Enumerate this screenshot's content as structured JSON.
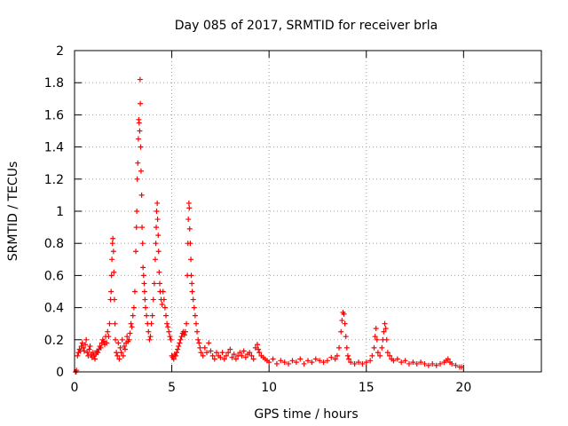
{
  "chart_data": {
    "type": "scatter",
    "title": "Day 085 of 2017, SRMTID for receiver brla",
    "xlabel": "GPS time / hours",
    "ylabel": "SRMTID / TECUs",
    "xlim": [
      0,
      24
    ],
    "ylim": [
      0,
      2
    ],
    "xticks": [
      0,
      5,
      10,
      15,
      20
    ],
    "yticks": [
      0,
      0.2,
      0.4,
      0.6,
      0.8,
      1,
      1.2,
      1.4,
      1.6,
      1.8,
      2
    ],
    "grid": true,
    "marker": "+",
    "series": [
      {
        "name": "SRMTID",
        "color": "#ff0000",
        "points": [
          [
            0.05,
            0.0
          ],
          [
            0.08,
            0.0
          ],
          [
            0.1,
            0.01
          ],
          [
            0.15,
            0.1
          ],
          [
            0.2,
            0.12
          ],
          [
            0.25,
            0.14
          ],
          [
            0.3,
            0.13
          ],
          [
            0.35,
            0.16
          ],
          [
            0.4,
            0.18
          ],
          [
            0.45,
            0.15
          ],
          [
            0.5,
            0.13
          ],
          [
            0.55,
            0.17
          ],
          [
            0.6,
            0.2
          ],
          [
            0.65,
            0.12
          ],
          [
            0.7,
            0.1
          ],
          [
            0.75,
            0.14
          ],
          [
            0.8,
            0.16
          ],
          [
            0.85,
            0.11
          ],
          [
            0.9,
            0.09
          ],
          [
            0.95,
            0.12
          ],
          [
            1.0,
            0.1
          ],
          [
            1.05,
            0.08
          ],
          [
            1.1,
            0.11
          ],
          [
            1.15,
            0.13
          ],
          [
            1.2,
            0.12
          ],
          [
            1.25,
            0.14
          ],
          [
            1.3,
            0.16
          ],
          [
            1.35,
            0.15
          ],
          [
            1.4,
            0.18
          ],
          [
            1.45,
            0.2
          ],
          [
            1.5,
            0.19
          ],
          [
            1.55,
            0.17
          ],
          [
            1.6,
            0.22
          ],
          [
            1.65,
            0.18
          ],
          [
            1.7,
            0.25
          ],
          [
            1.75,
            0.22
          ],
          [
            1.8,
            0.3
          ],
          [
            1.85,
            0.45
          ],
          [
            1.88,
            0.5
          ],
          [
            1.9,
            0.6
          ],
          [
            1.92,
            0.7
          ],
          [
            1.95,
            0.8
          ],
          [
            1.97,
            0.83
          ],
          [
            2.0,
            0.75
          ],
          [
            2.02,
            0.62
          ],
          [
            2.05,
            0.45
          ],
          [
            2.08,
            0.3
          ],
          [
            2.1,
            0.2
          ],
          [
            2.15,
            0.12
          ],
          [
            2.2,
            0.1
          ],
          [
            2.25,
            0.18
          ],
          [
            2.3,
            0.08
          ],
          [
            2.35,
            0.15
          ],
          [
            2.4,
            0.12
          ],
          [
            2.45,
            0.2
          ],
          [
            2.5,
            0.1
          ],
          [
            2.55,
            0.16
          ],
          [
            2.6,
            0.14
          ],
          [
            2.65,
            0.18
          ],
          [
            2.7,
            0.22
          ],
          [
            2.75,
            0.19
          ],
          [
            2.8,
            0.2
          ],
          [
            2.85,
            0.24
          ],
          [
            2.9,
            0.3
          ],
          [
            2.95,
            0.28
          ],
          [
            3.0,
            0.35
          ],
          [
            3.05,
            0.4
          ],
          [
            3.1,
            0.5
          ],
          [
            3.15,
            0.75
          ],
          [
            3.18,
            0.9
          ],
          [
            3.2,
            1.0
          ],
          [
            3.22,
            1.2
          ],
          [
            3.25,
            1.3
          ],
          [
            3.28,
            1.45
          ],
          [
            3.3,
            1.57
          ],
          [
            3.32,
            1.55
          ],
          [
            3.35,
            1.5
          ],
          [
            3.37,
            1.82
          ],
          [
            3.38,
            1.67
          ],
          [
            3.4,
            1.4
          ],
          [
            3.42,
            1.25
          ],
          [
            3.45,
            1.1
          ],
          [
            3.47,
            0.9
          ],
          [
            3.5,
            0.8
          ],
          [
            3.52,
            0.65
          ],
          [
            3.55,
            0.6
          ],
          [
            3.58,
            0.55
          ],
          [
            3.6,
            0.5
          ],
          [
            3.62,
            0.45
          ],
          [
            3.65,
            0.4
          ],
          [
            3.7,
            0.35
          ],
          [
            3.75,
            0.3
          ],
          [
            3.8,
            0.25
          ],
          [
            3.85,
            0.2
          ],
          [
            3.9,
            0.22
          ],
          [
            3.95,
            0.3
          ],
          [
            4.0,
            0.35
          ],
          [
            4.05,
            0.45
          ],
          [
            4.1,
            0.55
          ],
          [
            4.15,
            0.7
          ],
          [
            4.18,
            0.8
          ],
          [
            4.2,
            0.9
          ],
          [
            4.22,
            1.0
          ],
          [
            4.25,
            1.05
          ],
          [
            4.27,
            0.95
          ],
          [
            4.3,
            0.85
          ],
          [
            4.32,
            0.75
          ],
          [
            4.35,
            0.62
          ],
          [
            4.38,
            0.55
          ],
          [
            4.4,
            0.5
          ],
          [
            4.45,
            0.45
          ],
          [
            4.5,
            0.42
          ],
          [
            4.55,
            0.5
          ],
          [
            4.6,
            0.45
          ],
          [
            4.65,
            0.4
          ],
          [
            4.7,
            0.35
          ],
          [
            4.75,
            0.3
          ],
          [
            4.8,
            0.28
          ],
          [
            4.85,
            0.25
          ],
          [
            4.9,
            0.22
          ],
          [
            4.95,
            0.2
          ],
          [
            5.0,
            0.1
          ],
          [
            5.05,
            0.09
          ],
          [
            5.1,
            0.08
          ],
          [
            5.15,
            0.11
          ],
          [
            5.2,
            0.1
          ],
          [
            5.25,
            0.12
          ],
          [
            5.3,
            0.14
          ],
          [
            5.35,
            0.16
          ],
          [
            5.4,
            0.18
          ],
          [
            5.45,
            0.2
          ],
          [
            5.5,
            0.22
          ],
          [
            5.55,
            0.24
          ],
          [
            5.6,
            0.25
          ],
          [
            5.65,
            0.23
          ],
          [
            5.7,
            0.25
          ],
          [
            5.75,
            0.3
          ],
          [
            5.8,
            0.6
          ],
          [
            5.83,
            0.8
          ],
          [
            5.85,
            0.95
          ],
          [
            5.88,
            1.05
          ],
          [
            5.9,
            1.02
          ],
          [
            5.92,
            0.89
          ],
          [
            5.95,
            0.8
          ],
          [
            5.98,
            0.7
          ],
          [
            6.0,
            0.6
          ],
          [
            6.03,
            0.55
          ],
          [
            6.05,
            0.5
          ],
          [
            6.1,
            0.45
          ],
          [
            6.15,
            0.4
          ],
          [
            6.2,
            0.35
          ],
          [
            6.25,
            0.3
          ],
          [
            6.3,
            0.25
          ],
          [
            6.35,
            0.2
          ],
          [
            6.4,
            0.18
          ],
          [
            6.45,
            0.15
          ],
          [
            6.5,
            0.12
          ],
          [
            6.6,
            0.1
          ],
          [
            6.7,
            0.15
          ],
          [
            6.8,
            0.12
          ],
          [
            6.9,
            0.18
          ],
          [
            7.0,
            0.13
          ],
          [
            7.1,
            0.1
          ],
          [
            7.2,
            0.08
          ],
          [
            7.3,
            0.12
          ],
          [
            7.4,
            0.1
          ],
          [
            7.5,
            0.09
          ],
          [
            7.6,
            0.12
          ],
          [
            7.7,
            0.08
          ],
          [
            7.8,
            0.1
          ],
          [
            7.9,
            0.12
          ],
          [
            8.0,
            0.14
          ],
          [
            8.1,
            0.09
          ],
          [
            8.2,
            0.11
          ],
          [
            8.3,
            0.08
          ],
          [
            8.4,
            0.1
          ],
          [
            8.5,
            0.12
          ],
          [
            8.6,
            0.1
          ],
          [
            8.7,
            0.13
          ],
          [
            8.8,
            0.09
          ],
          [
            8.9,
            0.11
          ],
          [
            9.0,
            0.12
          ],
          [
            9.1,
            0.1
          ],
          [
            9.2,
            0.08
          ],
          [
            9.3,
            0.15
          ],
          [
            9.4,
            0.17
          ],
          [
            9.45,
            0.14
          ],
          [
            9.5,
            0.12
          ],
          [
            9.6,
            0.1
          ],
          [
            9.7,
            0.09
          ],
          [
            9.8,
            0.08
          ],
          [
            9.9,
            0.07
          ],
          [
            10.0,
            0.06
          ],
          [
            10.2,
            0.08
          ],
          [
            10.4,
            0.05
          ],
          [
            10.6,
            0.07
          ],
          [
            10.8,
            0.06
          ],
          [
            11.0,
            0.05
          ],
          [
            11.2,
            0.07
          ],
          [
            11.4,
            0.06
          ],
          [
            11.6,
            0.08
          ],
          [
            11.8,
            0.05
          ],
          [
            12.0,
            0.07
          ],
          [
            12.2,
            0.06
          ],
          [
            12.4,
            0.08
          ],
          [
            12.6,
            0.07
          ],
          [
            12.8,
            0.06
          ],
          [
            13.0,
            0.07
          ],
          [
            13.2,
            0.09
          ],
          [
            13.4,
            0.08
          ],
          [
            13.5,
            0.1
          ],
          [
            13.6,
            0.15
          ],
          [
            13.7,
            0.25
          ],
          [
            13.75,
            0.32
          ],
          [
            13.8,
            0.37
          ],
          [
            13.85,
            0.36
          ],
          [
            13.9,
            0.3
          ],
          [
            13.95,
            0.22
          ],
          [
            14.0,
            0.15
          ],
          [
            14.05,
            0.1
          ],
          [
            14.1,
            0.08
          ],
          [
            14.2,
            0.06
          ],
          [
            14.4,
            0.05
          ],
          [
            14.6,
            0.06
          ],
          [
            14.8,
            0.05
          ],
          [
            15.0,
            0.06
          ],
          [
            15.2,
            0.07
          ],
          [
            15.3,
            0.1
          ],
          [
            15.4,
            0.15
          ],
          [
            15.45,
            0.22
          ],
          [
            15.5,
            0.27
          ],
          [
            15.55,
            0.2
          ],
          [
            15.6,
            0.12
          ],
          [
            15.7,
            0.1
          ],
          [
            15.8,
            0.15
          ],
          [
            15.85,
            0.2
          ],
          [
            15.9,
            0.25
          ],
          [
            15.95,
            0.3
          ],
          [
            16.0,
            0.27
          ],
          [
            16.05,
            0.2
          ],
          [
            16.1,
            0.12
          ],
          [
            16.2,
            0.1
          ],
          [
            16.3,
            0.08
          ],
          [
            16.4,
            0.07
          ],
          [
            16.6,
            0.08
          ],
          [
            16.8,
            0.06
          ],
          [
            17.0,
            0.07
          ],
          [
            17.2,
            0.05
          ],
          [
            17.4,
            0.06
          ],
          [
            17.6,
            0.05
          ],
          [
            17.8,
            0.06
          ],
          [
            18.0,
            0.05
          ],
          [
            18.2,
            0.04
          ],
          [
            18.4,
            0.05
          ],
          [
            18.6,
            0.04
          ],
          [
            18.8,
            0.05
          ],
          [
            19.0,
            0.06
          ],
          [
            19.1,
            0.07
          ],
          [
            19.2,
            0.08
          ],
          [
            19.3,
            0.06
          ],
          [
            19.4,
            0.05
          ],
          [
            19.6,
            0.04
          ],
          [
            19.8,
            0.03
          ],
          [
            19.9,
            0.03
          ]
        ]
      }
    ]
  }
}
